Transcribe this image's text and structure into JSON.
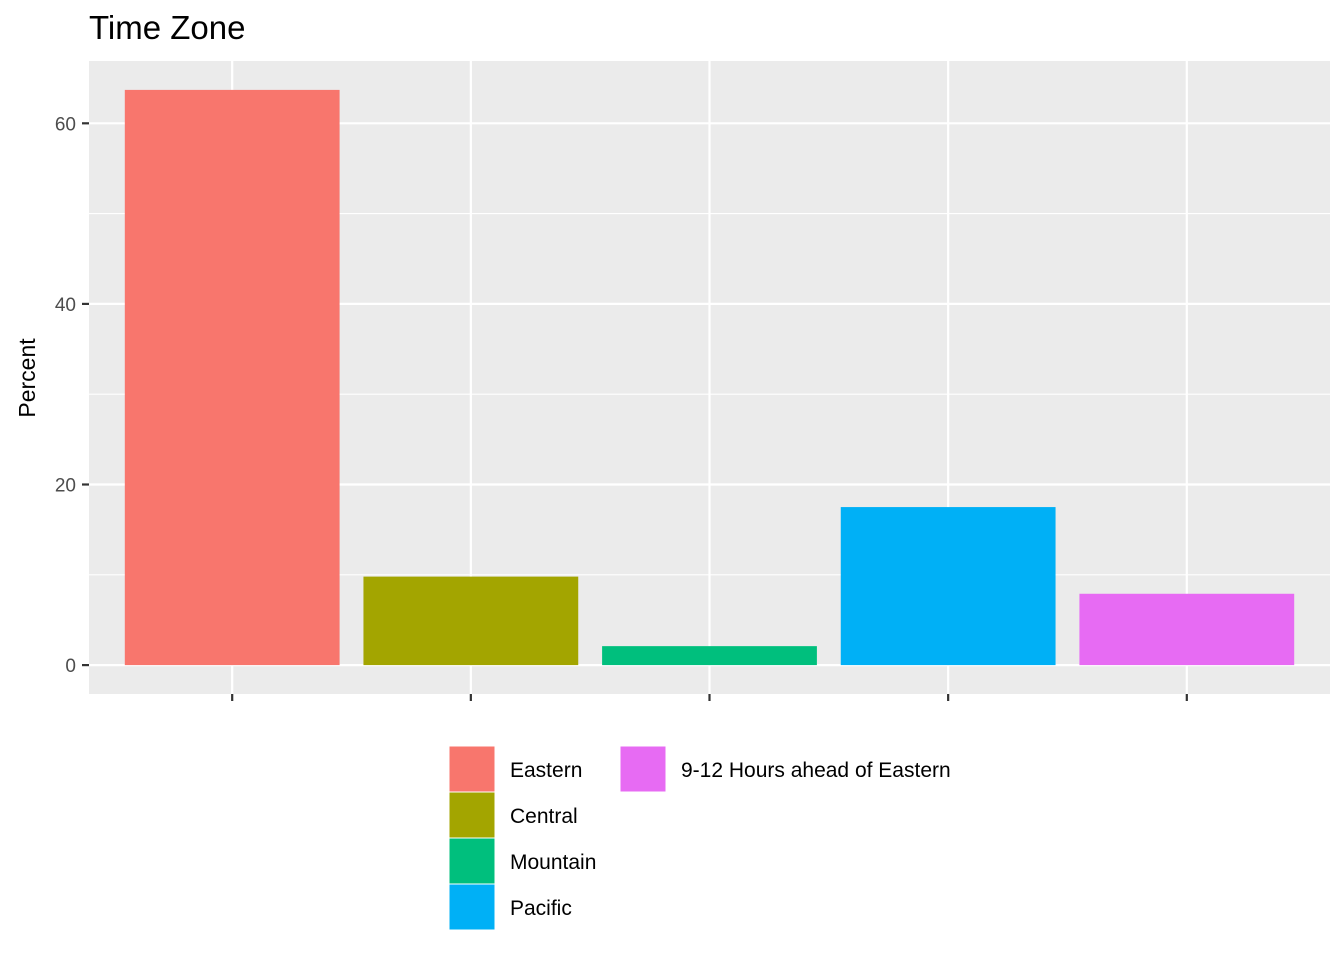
{
  "chart_data": {
    "type": "bar",
    "title": "Time Zone",
    "xlabel": "",
    "ylabel": "Percent",
    "categories": [
      "Eastern",
      "Central",
      "Mountain",
      "Pacific",
      "9-12 Hours ahead of Eastern"
    ],
    "values": [
      63.7,
      9.8,
      2.1,
      17.5,
      7.9
    ],
    "colors": [
      "#F8766D",
      "#A3A500",
      "#00BF7D",
      "#00B0F6",
      "#E76BF3"
    ],
    "ylim": [
      -3.2,
      66.9
    ],
    "yticks": [
      0,
      20,
      40,
      60
    ],
    "grid": true,
    "panel_background": "#EBEBEB",
    "legend_position": "bottom",
    "legend_entries": [
      "Eastern",
      "Central",
      "Mountain",
      "Pacific",
      "9-12 Hours ahead of Eastern"
    ]
  }
}
